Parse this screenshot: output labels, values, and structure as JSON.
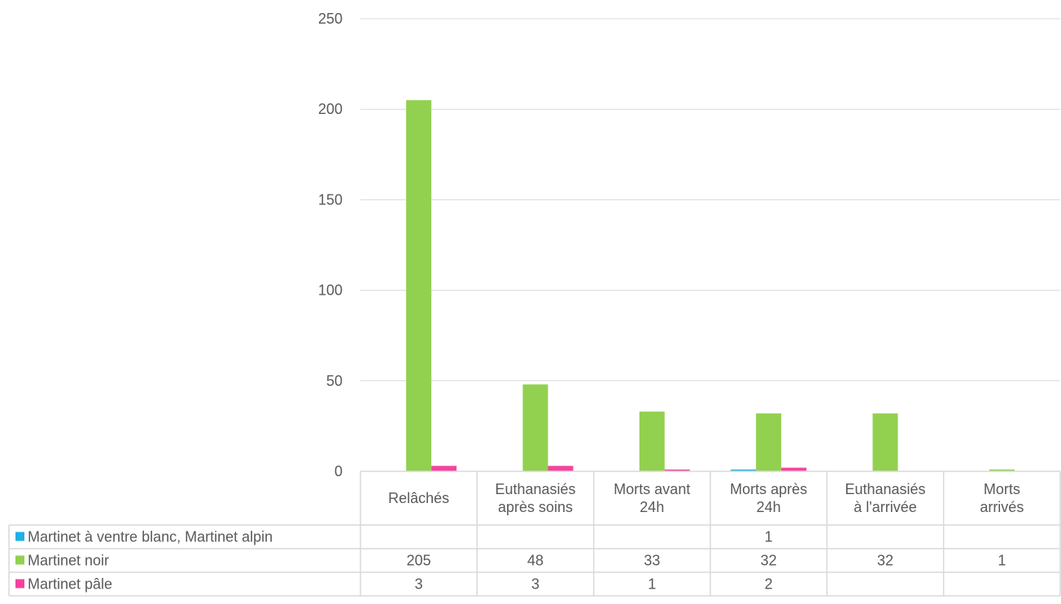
{
  "chart_data": {
    "type": "bar",
    "categories": [
      [
        "Relâchés"
      ],
      [
        "Euthanasiés",
        "après soins"
      ],
      [
        "Morts avant",
        "24h"
      ],
      [
        "Morts après",
        "24h"
      ],
      [
        "Euthanasiés",
        "à l'arrivée"
      ],
      [
        "Morts",
        "arrivés"
      ]
    ],
    "series": [
      {
        "name": "Martinet à ventre blanc, Martinet alpin",
        "color": "#1fb1e6",
        "values": [
          null,
          null,
          null,
          1,
          null,
          null
        ]
      },
      {
        "name": "Martinet noir",
        "color": "#92d050",
        "values": [
          205,
          48,
          33,
          32,
          32,
          1
        ]
      },
      {
        "name": "Martinet pâle",
        "color": "#f5439f",
        "values": [
          3,
          3,
          1,
          2,
          null,
          null
        ]
      }
    ],
    "ylim": [
      0,
      250
    ],
    "yticks": [
      0,
      50,
      100,
      150,
      200,
      250
    ],
    "grid": true,
    "legend": "data-table"
  }
}
